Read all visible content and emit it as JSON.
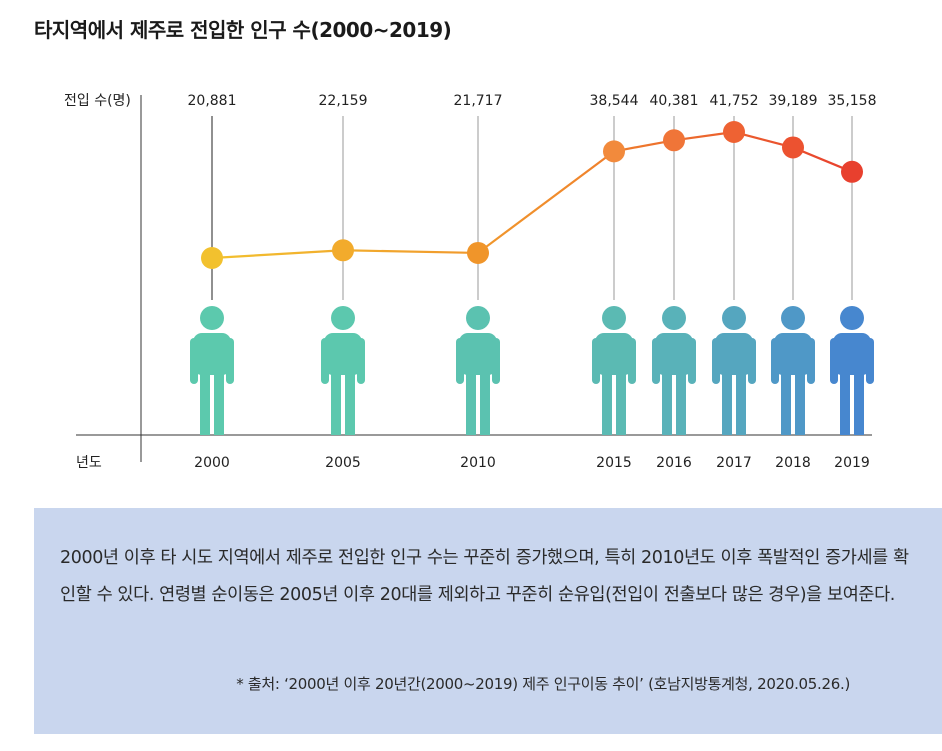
{
  "title": "타지역에서 제주로 전입한 인구 수(2000~2019)",
  "chart_data": {
    "type": "line",
    "title": "타지역에서 제주로 전입한 인구 수(2000~2019)",
    "ylabel": "전입 수(명)",
    "xlabel": "년도",
    "x": [
      "2000",
      "2005",
      "2010",
      "2015",
      "2016",
      "2017",
      "2018",
      "2019"
    ],
    "values": [
      20881,
      22159,
      21717,
      38544,
      40381,
      41752,
      39189,
      35158
    ],
    "value_labels": [
      "20,881",
      "22,159",
      "21,717",
      "38,544",
      "40,381",
      "41,752",
      "39,189",
      "35,158"
    ],
    "point_colors": [
      "#f2c12e",
      "#f2ab2c",
      "#f0952a",
      "#f28a3c",
      "#f07538",
      "#ee6233",
      "#ec5230",
      "#e8402e"
    ],
    "figure_colors": [
      "#5cc9ad",
      "#5cc8ae",
      "#5bc2b0",
      "#5bbab3",
      "#59b2b9",
      "#55a6bf",
      "#4f98c7",
      "#4787cf"
    ]
  },
  "note": {
    "description": "2000년 이후 타 시도 지역에서 제주로 전입한 인구 수는 꾸준히 증가했으며, 특히 2010년도 이후 폭발적인 증가세를 확인할 수 있다. 연령별 순이동은 2005년 이후 20대를 제외하고 꾸준히 순유입(전입이 전출보다 많은 경우)을 보여준다.",
    "source": "* 출처: ‘2000년 이후 20년간(2000~2019) 제주 인구이동 추이’ (호남지방통계청, 2020.05.26.)"
  }
}
